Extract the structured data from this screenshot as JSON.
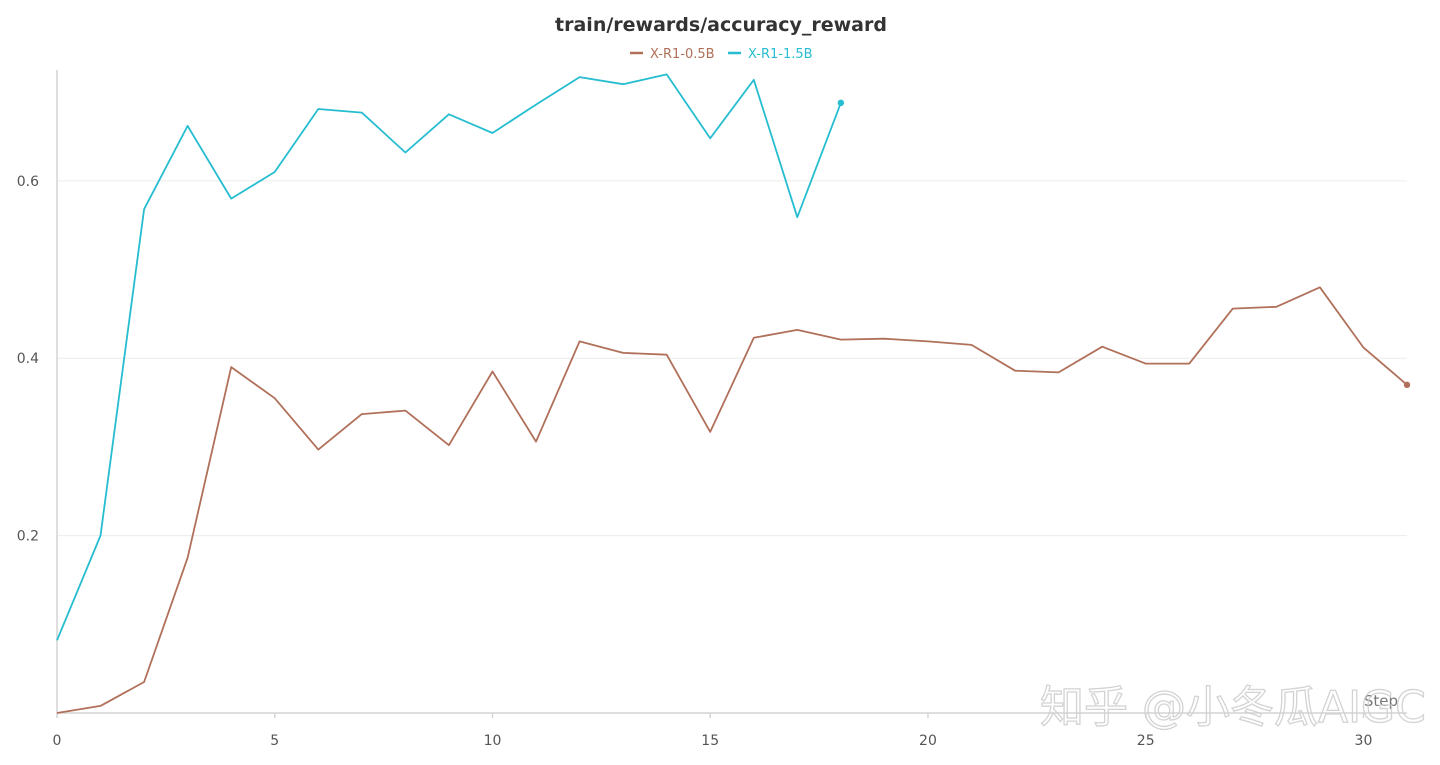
{
  "chart_data": {
    "type": "line",
    "title": "train/rewards/accuracy_reward",
    "xlabel": "Step",
    "ylabel": "",
    "xlim": [
      0,
      31
    ],
    "ylim": [
      0,
      0.725
    ],
    "xticks": [
      0,
      5,
      10,
      15,
      20,
      25,
      30
    ],
    "yticks": [
      0.2,
      0.4,
      0.6
    ],
    "grid": true,
    "legend_position": "top-center",
    "series": [
      {
        "name": "X-R1-0.5B",
        "color": "#b0705a",
        "x": [
          0,
          1,
          2,
          3,
          4,
          5,
          6,
          7,
          8,
          9,
          10,
          11,
          12,
          13,
          14,
          15,
          16,
          17,
          18,
          19,
          20,
          21,
          22,
          23,
          24,
          25,
          26,
          27,
          28,
          29,
          30,
          31
        ],
        "values": [
          0.0,
          0.008,
          0.035,
          0.175,
          0.39,
          0.355,
          0.297,
          0.337,
          0.341,
          0.302,
          0.385,
          0.306,
          0.419,
          0.406,
          0.404,
          0.317,
          0.423,
          0.432,
          0.421,
          0.422,
          0.419,
          0.415,
          0.386,
          0.384,
          0.413,
          0.394,
          0.394,
          0.456,
          0.458,
          0.48,
          0.412,
          0.37
        ]
      },
      {
        "name": "X-R1-1.5B",
        "color": "#26bdd0",
        "x": [
          0,
          1,
          2,
          3,
          4,
          5,
          6,
          7,
          8,
          9,
          10,
          11,
          12,
          13,
          14,
          15,
          16,
          17,
          18
        ],
        "values": [
          0.082,
          0.2,
          0.568,
          0.662,
          0.58,
          0.61,
          0.681,
          0.677,
          0.632,
          0.675,
          0.654,
          0.686,
          0.717,
          0.709,
          0.72,
          0.648,
          0.714,
          0.559,
          0.688
        ]
      }
    ]
  },
  "watermark": "知乎 @小冬瓜AIGC"
}
